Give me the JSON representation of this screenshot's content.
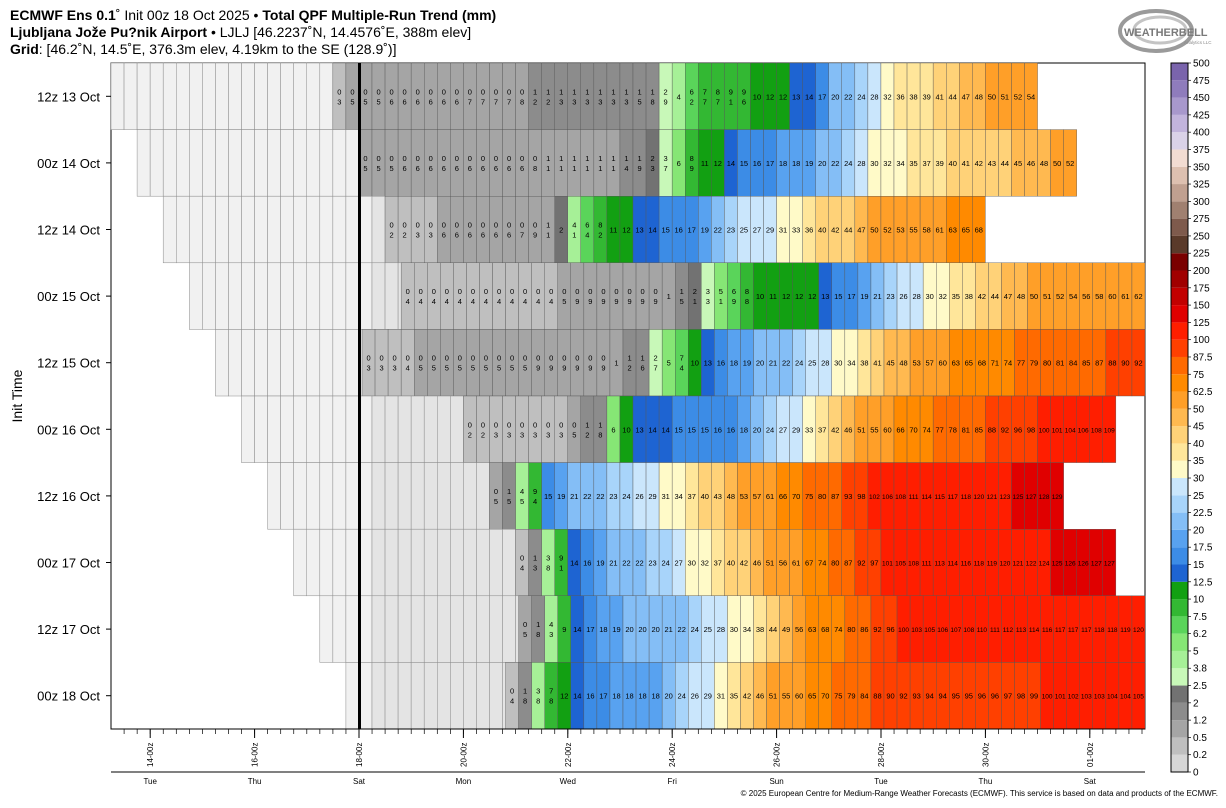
{
  "header": {
    "model": "ECMWF Ens 0.1",
    "deg": "˚",
    "init": " Init 00z 18 Oct 2025 • ",
    "product": "Total QPF Multiple-Run Trend (mm)",
    "station_name": "Ljubljana Jože Pu?nik Airport",
    "station_sep": " • ",
    "station_info": "LJLJ [46.2237˚N, 14.4576˚E, 388m elev]",
    "grid_label": "Grid",
    "grid_info": ": [46.2˚N, 14.5˚E, 376.3m elev, 4.19km to the SE (128.9˚)]"
  },
  "logo": {
    "text": "WEATHERBELL",
    "sub": "Analytics LLC"
  },
  "copyright": "© 2025 European Centre for Medium-Range Weather Forecasts (ECMWF). This service is based on data and products of the ECMWF.",
  "chart_data": {
    "type": "heatmap",
    "ylabel": "Init Time",
    "x_ticks": [
      "14-00z",
      "16-00z",
      "18-00z",
      "20-00z",
      "22-00z",
      "24-00z",
      "26-00z",
      "28-00z",
      "30-00z",
      "01-00z"
    ],
    "x_days": [
      "Tue",
      "Thu",
      "Sat",
      "Mon",
      "Wed",
      "Fri",
      "Sun",
      "Tue",
      "Thu",
      "Sat"
    ],
    "current_time_marker": "18-00z",
    "colorbar": {
      "labels": [
        "0",
        "0.2",
        "0.5",
        "1.2",
        "2",
        "2.5",
        "3.8",
        "5",
        "6.2",
        "7.5",
        "10",
        "12.5",
        "15",
        "17.5",
        "20",
        "22.5",
        "25",
        "30",
        "35",
        "40",
        "45",
        "50",
        "62.5",
        "75",
        "87.5",
        "100",
        "125",
        "150",
        "175",
        "200",
        "225",
        "250",
        "275",
        "300",
        "325",
        "350",
        "375",
        "400",
        "425",
        "450",
        "475",
        "500"
      ],
      "colors": [
        "#ffffff",
        "#d6d6d6",
        "#bfbfbf",
        "#a5a5a5",
        "#8c8c8c",
        "#727272",
        "#c8f8b8",
        "#a6f097",
        "#86e675",
        "#5ad45a",
        "#33b833",
        "#12a012",
        "#1e64d2",
        "#3c8ce6",
        "#58a2f0",
        "#84bef6",
        "#a8d4fa",
        "#cae6fc",
        "#fffac8",
        "#ffe69a",
        "#ffd278",
        "#ffb950",
        "#ff9f28",
        "#ff8a00",
        "#ff6a00",
        "#ff4000",
        "#ff1e00",
        "#e00000",
        "#c20000",
        "#a00000",
        "#7a0000",
        "#5a3a2a",
        "#7e5a4c",
        "#a08070",
        "#c0a090",
        "#ddc0b0",
        "#f2dcd2",
        "#dad2e8",
        "#c2b4dc",
        "#a898cc",
        "#8f7cbc",
        "#7a64ac",
        "#68509c",
        "#800080",
        "#9a009a",
        "#b400b4",
        "#cc00cc",
        "#e000e0",
        "#f000f0"
      ]
    },
    "rows": [
      {
        "label": "12z 13 Oct",
        "prefix": [
          "",
          "",
          "",
          "",
          "",
          "",
          "",
          "",
          "",
          "",
          "",
          "",
          "",
          "",
          "",
          "",
          "",
          "",
          "",
          "",
          "",
          "",
          "",
          "",
          "",
          "",
          "",
          "",
          "",
          "",
          "",
          "",
          "",
          "",
          "",
          "",
          "",
          "",
          "",
          "",
          "",
          "",
          "",
          "",
          "",
          "",
          "",
          "",
          "",
          ""
        ],
        "values": [
          "0.3",
          "0.5",
          "0.5",
          "0.5",
          "0.6",
          "0.6",
          "0.6",
          "0.6",
          "0.6",
          "0.6",
          "0.7",
          "0.7",
          "0.7",
          "0.7",
          "0.8",
          "1.2",
          "1.2",
          "1.3",
          "1.3",
          "1.3",
          "1.3",
          "1.3",
          "1.3",
          "1.5",
          "1.8",
          "2.9",
          "4",
          "6.2",
          "7.7",
          "8.7",
          "9.1",
          "9.6",
          "10",
          "12",
          "12",
          "13",
          "14",
          "17",
          "20",
          "22",
          "24",
          "28",
          "32",
          "36",
          "38",
          "39",
          "41",
          "44",
          "47",
          "48",
          "50",
          "51",
          "52",
          "54"
        ]
      },
      {
        "label": "00z 14 Oct",
        "values": [
          "0.5",
          "0.5",
          "0.5",
          "0.6",
          "0.6",
          "0.6",
          "0.6",
          "0.6",
          "0.6",
          "0.6",
          "0.6",
          "0.6",
          "0.6",
          "0.8",
          "1.1",
          "1.1",
          "1.1",
          "1.1",
          "1.1",
          "1.1",
          "1.4",
          "1.9",
          "2.3",
          "3.7",
          "6",
          "8.9",
          "11",
          "12",
          "14",
          "15",
          "16",
          "17",
          "18",
          "18",
          "19",
          "20",
          "22",
          "24",
          "28",
          "30",
          "32",
          "34",
          "35",
          "37",
          "39",
          "40",
          "41",
          "42",
          "43",
          "44",
          "45",
          "46",
          "48",
          "50",
          "52"
        ]
      },
      {
        "label": "12z 14 Oct",
        "values": [
          "0.2",
          "0.2",
          "0.3",
          "0.3",
          "0.6",
          "0.6",
          "0.6",
          "0.6",
          "0.6",
          "0.6",
          "0.7",
          "0.9",
          "1.1",
          "2",
          "4.1",
          "6.4",
          "8.2",
          "11",
          "12",
          "13",
          "14",
          "15",
          "16",
          "17",
          "19",
          "22",
          "23",
          "25",
          "27",
          "29",
          "31",
          "33",
          "36",
          "40",
          "42",
          "44",
          "47",
          "50",
          "52",
          "53",
          "55",
          "58",
          "61",
          "63",
          "65",
          "68"
        ]
      },
      {
        "label": "00z 15 Oct",
        "values": [
          "0.4",
          "0.4",
          "0.4",
          "0.4",
          "0.4",
          "0.4",
          "0.4",
          "0.4",
          "0.4",
          "0.4",
          "0.4",
          "0.4",
          "0.5",
          "0.9",
          "0.9",
          "0.9",
          "0.9",
          "0.9",
          "0.9",
          "0.9",
          "1",
          "1.5",
          "2.1",
          "3.3",
          "5.1",
          "6.9",
          "8.8",
          "10",
          "11",
          "12",
          "12",
          "12",
          "13",
          "15",
          "17",
          "19",
          "21",
          "23",
          "26",
          "28",
          "30",
          "32",
          "35",
          "38",
          "42",
          "44",
          "47",
          "48",
          "50",
          "51",
          "52",
          "54",
          "56",
          "58",
          "60",
          "61",
          "62"
        ]
      },
      {
        "label": "12z 15 Oct",
        "values": [
          "0.3",
          "0.3",
          "0.3",
          "0.4",
          "0.5",
          "0.5",
          "0.5",
          "0.5",
          "0.5",
          "0.5",
          "0.5",
          "0.5",
          "0.5",
          "0.9",
          "0.9",
          "0.9",
          "0.9",
          "0.9",
          "0.9",
          "1",
          "1.2",
          "1.6",
          "2.7",
          "5",
          "7.4",
          "10",
          "13",
          "16",
          "18",
          "19",
          "20",
          "21",
          "22",
          "24",
          "25",
          "28",
          "30",
          "34",
          "38",
          "41",
          "45",
          "48",
          "53",
          "57",
          "60",
          "63",
          "65",
          "68",
          "71",
          "74",
          "77",
          "79",
          "80",
          "81",
          "84",
          "85",
          "87",
          "88",
          "90",
          "92"
        ]
      },
      {
        "label": "00z 16 Oct",
        "values": [
          "0.2",
          "0.2",
          "0.3",
          "0.3",
          "0.3",
          "0.3",
          "0.3",
          "0.3",
          "0.5",
          "1.2",
          "1.8",
          "6",
          "10",
          "13",
          "14",
          "14",
          "15",
          "15",
          "15",
          "16",
          "16",
          "18",
          "20",
          "24",
          "27",
          "29",
          "33",
          "37",
          "42",
          "46",
          "51",
          "55",
          "60",
          "66",
          "70",
          "74",
          "77",
          "78",
          "81",
          "85",
          "88",
          "92",
          "96",
          "98",
          "100",
          "101",
          "104",
          "106",
          "108",
          "109"
        ]
      },
      {
        "label": "12z 16 Oct",
        "values": [
          "0.5",
          "1.5",
          "4.5",
          "9.4",
          "15",
          "19",
          "21",
          "22",
          "22",
          "23",
          "24",
          "26",
          "29",
          "31",
          "34",
          "37",
          "40",
          "43",
          "48",
          "53",
          "57",
          "61",
          "66",
          "70",
          "75",
          "80",
          "87",
          "93",
          "98",
          "102",
          "106",
          "108",
          "111",
          "114",
          "115",
          "117",
          "118",
          "120",
          "121",
          "123",
          "125",
          "127",
          "128",
          "129"
        ]
      },
      {
        "label": "00z 17 Oct",
        "values": [
          "0.4",
          "1.3",
          "3.8",
          "9.1",
          "14",
          "16",
          "19",
          "21",
          "22",
          "22",
          "23",
          "24",
          "27",
          "30",
          "32",
          "37",
          "40",
          "42",
          "46",
          "51",
          "56",
          "61",
          "67",
          "74",
          "80",
          "87",
          "92",
          "97",
          "101",
          "105",
          "108",
          "111",
          "113",
          "114",
          "116",
          "118",
          "119",
          "120",
          "121",
          "122",
          "124",
          "125",
          "126",
          "126",
          "127",
          "127"
        ]
      },
      {
        "label": "12z 17 Oct",
        "values": [
          "0.5",
          "1.8",
          "4.3",
          "9",
          "14",
          "17",
          "18",
          "19",
          "20",
          "20",
          "20",
          "21",
          "22",
          "24",
          "25",
          "28",
          "30",
          "34",
          "38",
          "44",
          "49",
          "56",
          "63",
          "68",
          "74",
          "80",
          "86",
          "92",
          "96",
          "100",
          "103",
          "105",
          "106",
          "107",
          "108",
          "110",
          "111",
          "112",
          "113",
          "114",
          "116",
          "117",
          "117",
          "117",
          "118",
          "118",
          "119",
          "120"
        ]
      },
      {
        "label": "00z 18 Oct",
        "values": [
          "0.4",
          "1.8",
          "3.8",
          "7.8",
          "12",
          "14",
          "16",
          "17",
          "18",
          "18",
          "18",
          "18",
          "20",
          "24",
          "26",
          "29",
          "31",
          "35",
          "42",
          "46",
          "51",
          "55",
          "60",
          "65",
          "70",
          "75",
          "79",
          "84",
          "88",
          "90",
          "92",
          "93",
          "94",
          "94",
          "95",
          "95",
          "96",
          "96",
          "97",
          "98",
          "99",
          "100",
          "101",
          "102",
          "103",
          "103",
          "104",
          "104",
          "105"
        ]
      }
    ]
  }
}
